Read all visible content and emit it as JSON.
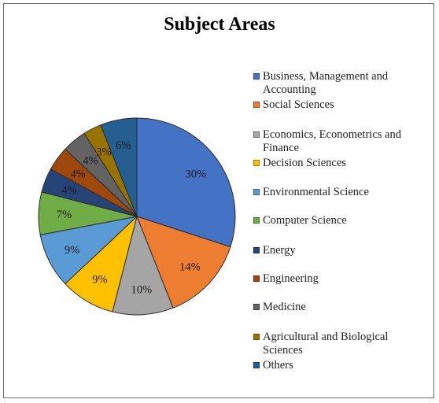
{
  "chart_data": {
    "type": "pie",
    "title": "Subject Areas",
    "legend_position": "right",
    "slices": [
      {
        "label": "Business, Management and Accounting",
        "value": 30,
        "display": "30%",
        "color": "#4472C4"
      },
      {
        "label": "Social Sciences",
        "value": 14,
        "display": "14%",
        "color": "#ED7D31"
      },
      {
        "label": "Economics, Econometrics and Finance",
        "value": 10,
        "display": "10%",
        "color": "#A5A5A5"
      },
      {
        "label": "Decision Sciences",
        "value": 9,
        "display": "9%",
        "color": "#FFC000"
      },
      {
        "label": "Environmental Science",
        "value": 9,
        "display": "9%",
        "color": "#5B9BD5"
      },
      {
        "label": "Computer Science",
        "value": 7,
        "display": "7%",
        "color": "#70AD47"
      },
      {
        "label": "Energy",
        "value": 4,
        "display": "4%",
        "color": "#264478"
      },
      {
        "label": "Engineering",
        "value": 4,
        "display": "4%",
        "color": "#9E480E"
      },
      {
        "label": "Medicine",
        "value": 4,
        "display": "4%",
        "color": "#636363"
      },
      {
        "label": "Agricultural and Biological Sciences",
        "value": 3,
        "display": "3%",
        "color": "#997300"
      },
      {
        "label": "Others",
        "value": 6,
        "display": "6%",
        "color": "#255E91"
      }
    ]
  }
}
